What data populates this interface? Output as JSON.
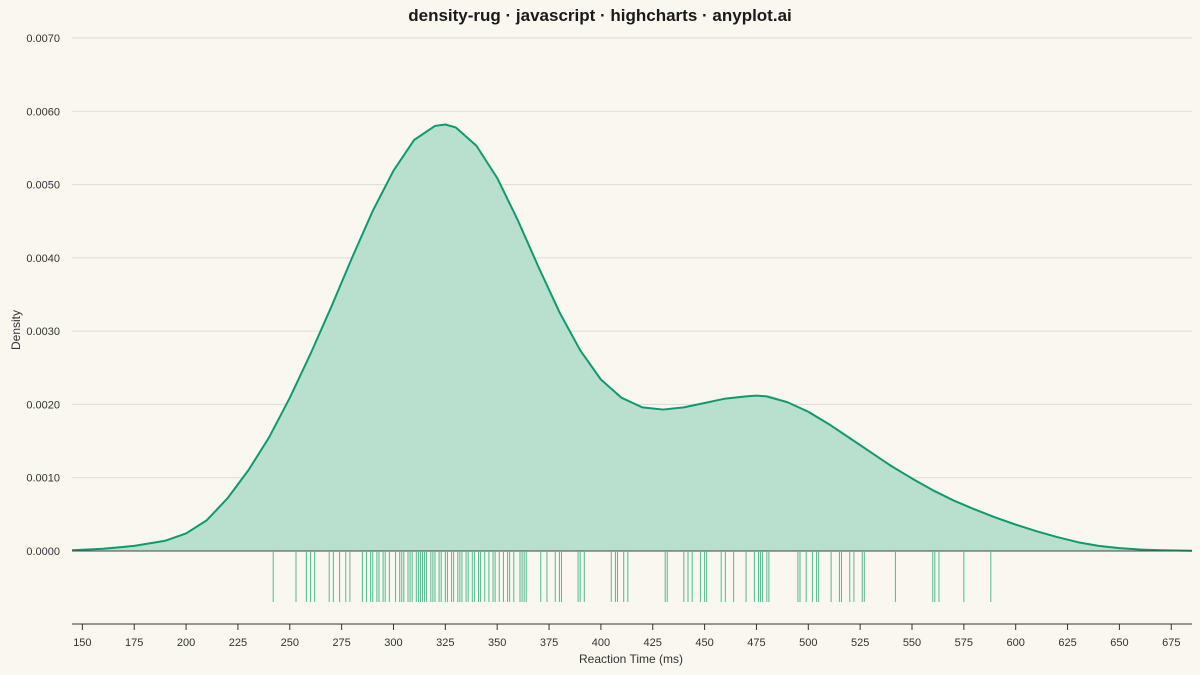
{
  "chart_data": {
    "type": "area",
    "title": "density-rug · javascript · highcharts · anyplot.ai",
    "xlabel": "Reaction Time (ms)",
    "ylabel": "Density",
    "xlim": [
      145,
      685
    ],
    "ylim": [
      0,
      0.007
    ],
    "x_ticks": [
      150,
      175,
      200,
      225,
      250,
      275,
      300,
      325,
      350,
      375,
      400,
      425,
      450,
      475,
      500,
      525,
      550,
      575,
      600,
      625,
      650,
      675
    ],
    "y_ticks": [
      0,
      0.001,
      0.002,
      0.003,
      0.004,
      0.005,
      0.006,
      0.007
    ],
    "y_tick_labels": [
      "0.0000",
      "0.0010",
      "0.0020",
      "0.0030",
      "0.0040",
      "0.0050",
      "0.0060",
      "0.0070"
    ],
    "grid": true,
    "legend": "none",
    "series": [
      {
        "type": "area",
        "color": "#0f9a6e",
        "fill": "#b9e0cf",
        "x": [
          145,
          160,
          175,
          190,
          200,
          210,
          220,
          230,
          240,
          250,
          260,
          270,
          280,
          290,
          300,
          310,
          320,
          325,
          330,
          340,
          350,
          360,
          370,
          380,
          390,
          400,
          410,
          420,
          430,
          440,
          450,
          460,
          470,
          475,
          480,
          490,
          500,
          510,
          520,
          530,
          540,
          550,
          560,
          570,
          580,
          590,
          600,
          610,
          620,
          630,
          640,
          650,
          660,
          670,
          685
        ],
        "y": [
          1e-05,
          3e-05,
          7e-05,
          0.00014,
          0.00024,
          0.00042,
          0.00072,
          0.0011,
          0.00155,
          0.00209,
          0.00269,
          0.00333,
          0.004,
          0.00464,
          0.00519,
          0.00561,
          0.0058,
          0.00582,
          0.00578,
          0.00553,
          0.00509,
          0.00451,
          0.00387,
          0.00326,
          0.00274,
          0.00234,
          0.00209,
          0.00196,
          0.00193,
          0.00196,
          0.00202,
          0.00208,
          0.00211,
          0.00212,
          0.00211,
          0.00203,
          0.0019,
          0.00173,
          0.00154,
          0.00135,
          0.00116,
          0.00099,
          0.00083,
          0.00069,
          0.00057,
          0.00046,
          0.00036,
          0.00027,
          0.00019,
          0.00012,
          7e-05,
          4e-05,
          2e-05,
          1e-05,
          3e-06
        ]
      }
    ],
    "rug": {
      "color": "#52b98f",
      "values": [
        242,
        253,
        258,
        260,
        262,
        269,
        271,
        274,
        277,
        279,
        285,
        287,
        289,
        290,
        292,
        293,
        295,
        296,
        298,
        301,
        303,
        304,
        305,
        307,
        308,
        309,
        311,
        312,
        313,
        314,
        315,
        316,
        318,
        319,
        320,
        322,
        323,
        325,
        326,
        328,
        329,
        331,
        332,
        333,
        335,
        336,
        338,
        339,
        341,
        342,
        344,
        346,
        348,
        349,
        351,
        353,
        355,
        356,
        358,
        361,
        362,
        363,
        364,
        371,
        374,
        378,
        380,
        381,
        389,
        390,
        392,
        405,
        407,
        408,
        411,
        413,
        431,
        432,
        440,
        442,
        444,
        448,
        450,
        451,
        458,
        460,
        464,
        470,
        474,
        476,
        477,
        478,
        480,
        481,
        495,
        496,
        499,
        502,
        504,
        505,
        511,
        515,
        516,
        520,
        522,
        526,
        527,
        542,
        560,
        561,
        563,
        575,
        588
      ]
    }
  }
}
